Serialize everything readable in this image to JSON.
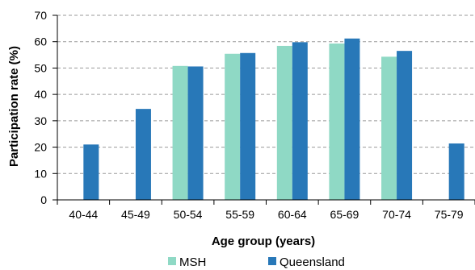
{
  "chart_data": {
    "type": "bar",
    "categories": [
      "40-44",
      "45-49",
      "50-54",
      "55-59",
      "60-64",
      "65-69",
      "70-74",
      "75-79"
    ],
    "series": [
      {
        "name": "MSH",
        "color": "#8fd9c5",
        "values": [
          null,
          null,
          50.8,
          55.4,
          58.4,
          59.3,
          54.3,
          null
        ]
      },
      {
        "name": "Queensland",
        "color": "#2878b8",
        "values": [
          21.0,
          34.5,
          50.6,
          55.7,
          59.8,
          61.2,
          56.5,
          21.4
        ]
      }
    ],
    "ylim": [
      0,
      70
    ],
    "yticks": [
      0,
      10,
      20,
      30,
      40,
      50,
      60,
      70
    ],
    "ytick_labels": [
      "0",
      "10",
      "20",
      "30",
      "40",
      "50",
      "60",
      "70"
    ],
    "xlabel": "Age group (years)",
    "ylabel": "Participation rate (%)",
    "grid": true,
    "legend_position": "bottom"
  }
}
